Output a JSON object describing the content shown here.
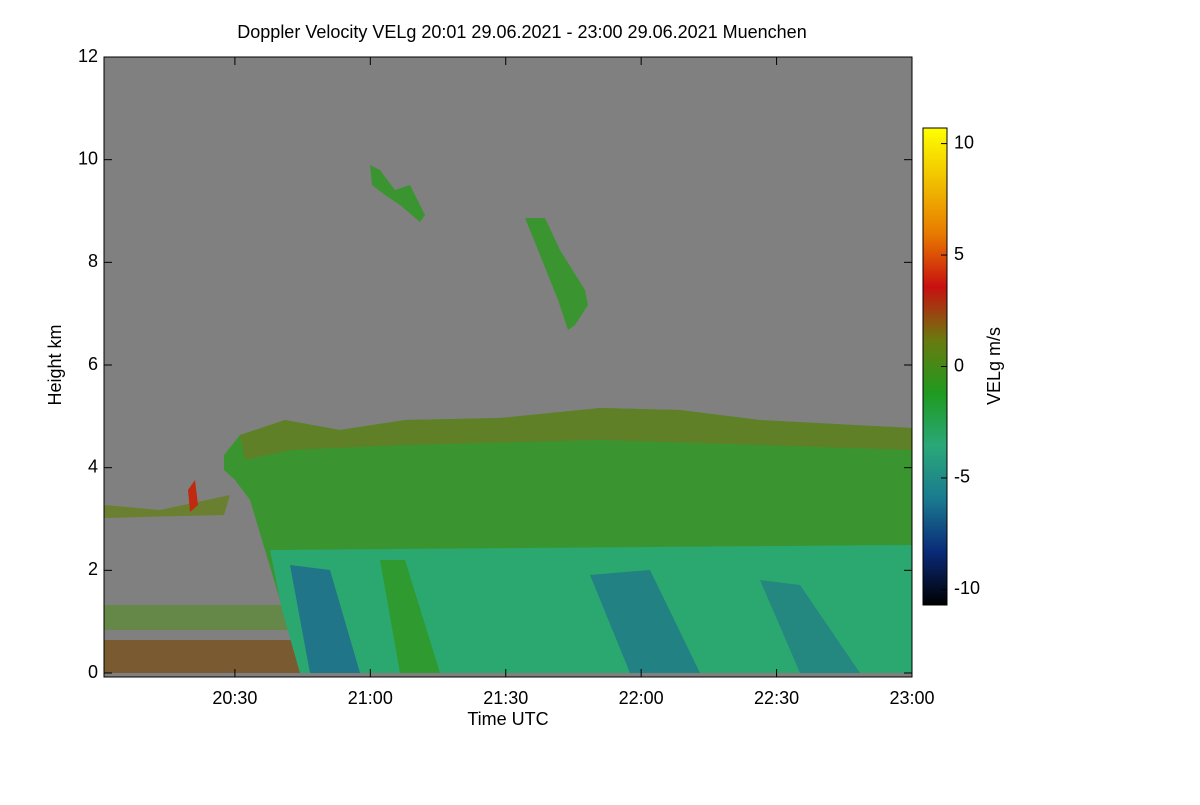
{
  "chart_data": {
    "type": "heatmap",
    "title": "Doppler Velocity VELg   20:01 29.06.2021 - 23:00 29.06.2021 Muenchen",
    "x_label": "Time UTC",
    "y_label": "Height km",
    "xlim": [
      20.0167,
      23.0
    ],
    "xticks": [
      {
        "value": 20.5,
        "label": "20:30"
      },
      {
        "value": 21.0,
        "label": "21:00"
      },
      {
        "value": 21.5,
        "label": "21:30"
      },
      {
        "value": 22.0,
        "label": "22:00"
      },
      {
        "value": 22.5,
        "label": "22:30"
      },
      {
        "value": 23.0,
        "label": "23:00"
      }
    ],
    "ylim": [
      0,
      12
    ],
    "yticks": [
      0,
      2,
      4,
      6,
      8,
      10,
      12
    ],
    "colorbar": {
      "label": "VELg m/s",
      "lim": [
        -10.7,
        10.7
      ],
      "ticks": [
        -10,
        -5,
        0,
        5,
        10
      ],
      "colormap": [
        "#000000",
        "#0a2a78",
        "#1a7a90",
        "#2aa878",
        "#1f9a20",
        "#6a7a10",
        "#c81010",
        "#e87a00",
        "#f0c000",
        "#ffff00"
      ]
    },
    "background_color": "#808080"
  }
}
